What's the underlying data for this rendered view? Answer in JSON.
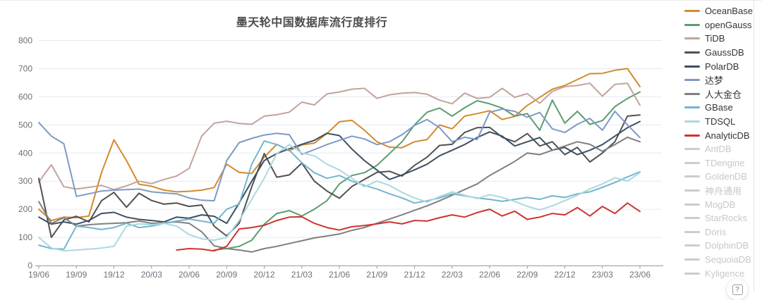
{
  "chart_data": {
    "type": "line",
    "title": "墨天轮中国数据库流行度排行",
    "xlabel": "",
    "ylabel": "",
    "ylim": [
      0,
      800
    ],
    "y_ticks": [
      0,
      100,
      200,
      300,
      400,
      500,
      600,
      700,
      800
    ],
    "x_tick_labels": [
      "19/06",
      "19/09",
      "19/12",
      "20/03",
      "20/06",
      "20/09",
      "20/12",
      "21/03",
      "21/06",
      "21/09",
      "21/12",
      "22/03",
      "22/06",
      "22/09",
      "22/12",
      "23/03",
      "23/06"
    ],
    "x_interval": "monthly, quarterly labels",
    "n_points": 49,
    "grid": "horizontal only",
    "legend_position": "right",
    "style": {
      "grid_color": "#e3e9f3",
      "axis_color": "#999999",
      "tick_color": "#6e7079"
    },
    "series": [
      {
        "name": "OceanBase",
        "color": "#d48a2b",
        "values": [
          200,
          160,
          172,
          170,
          176,
          330,
          447,
          373,
          289,
          282,
          268,
          262,
          264,
          268,
          277,
          360,
          331,
          327,
          385,
          431,
          408,
          429,
          435,
          469,
          511,
          516,
          481,
          440,
          421,
          419,
          440,
          448,
          500,
          486,
          531,
          540,
          550,
          519,
          530,
          569,
          598,
          627,
          640,
          661,
          682,
          683,
          694,
          700,
          636
        ]
      },
      {
        "name": "openGauss",
        "color": "#5d9c70",
        "values": [
          null,
          null,
          null,
          null,
          null,
          null,
          null,
          null,
          null,
          null,
          null,
          null,
          null,
          null,
          55,
          60,
          68,
          90,
          147,
          185,
          195,
          176,
          200,
          230,
          290,
          320,
          330,
          356,
          398,
          440,
          500,
          545,
          560,
          531,
          561,
          586,
          575,
          560,
          531,
          540,
          481,
          588,
          506,
          548,
          502,
          515,
          565,
          594,
          617
        ]
      },
      {
        "name": "TiDB",
        "color": "#c4a39b",
        "values": [
          297,
          358,
          280,
          272,
          278,
          285,
          270,
          283,
          300,
          291,
          306,
          318,
          345,
          460,
          506,
          513,
          505,
          502,
          531,
          536,
          545,
          581,
          571,
          610,
          617,
          627,
          630,
          594,
          607,
          613,
          615,
          609,
          588,
          575,
          613,
          594,
          598,
          630,
          598,
          611,
          577,
          619,
          636,
          640,
          648,
          602,
          644,
          648,
          570
        ]
      },
      {
        "name": "GaussDB",
        "color": "#515151",
        "values": [
          310,
          100,
          162,
          175,
          155,
          230,
          260,
          207,
          257,
          231,
          218,
          222,
          210,
          215,
          140,
          105,
          150,
          280,
          398,
          314,
          322,
          364,
          300,
          265,
          239,
          281,
          306,
          331,
          335,
          318,
          356,
          385,
          427,
          431,
          473,
          490,
          491,
          456,
          440,
          469,
          425,
          440,
          394,
          420,
          368,
          400,
          440,
          531,
          535
        ]
      },
      {
        "name": "PolarDB",
        "color": "#3c4f63",
        "values": [
          172,
          147,
          155,
          147,
          160,
          185,
          189,
          172,
          164,
          160,
          155,
          172,
          168,
          180,
          175,
          150,
          222,
          300,
          373,
          398,
          415,
          431,
          445,
          470,
          462,
          414,
          373,
          339,
          306,
          322,
          340,
          360,
          390,
          410,
          430,
          455,
          475,
          460,
          425,
          440,
          455,
          410,
          420,
          394,
          410,
          430,
          460,
          490,
          512
        ]
      },
      {
        "name": "达梦",
        "color": "#7d9ac6",
        "values": [
          508,
          460,
          433,
          246,
          255,
          265,
          268,
          270,
          272,
          262,
          258,
          255,
          240,
          232,
          230,
          373,
          437,
          452,
          464,
          470,
          465,
          395,
          412,
          430,
          445,
          460,
          450,
          430,
          440,
          465,
          498,
          519,
          490,
          440,
          456,
          448,
          545,
          556,
          548,
          527,
          544,
          486,
          473,
          502,
          523,
          481,
          548,
          500,
          455
        ]
      },
      {
        "name": "人大金仓",
        "color": "#7f7f7f",
        "values": [
          227,
          150,
          170,
          140,
          145,
          148,
          150,
          152,
          158,
          150,
          152,
          155,
          150,
          120,
          70,
          60,
          55,
          48,
          60,
          68,
          78,
          88,
          98,
          105,
          112,
          125,
          135,
          150,
          165,
          180,
          196,
          212,
          230,
          250,
          270,
          290,
          320,
          345,
          370,
          400,
          394,
          410,
          425,
          440,
          431,
          406,
          430,
          456,
          440
        ]
      },
      {
        "name": "GBase",
        "color": "#74b5cd",
        "values": [
          72,
          60,
          58,
          140,
          135,
          128,
          135,
          150,
          135,
          140,
          150,
          158,
          165,
          158,
          150,
          200,
          218,
          360,
          443,
          430,
          410,
          365,
          330,
          310,
          320,
          300,
          285,
          272,
          255,
          240,
          222,
          230,
          240,
          255,
          248,
          240,
          235,
          228,
          235,
          242,
          235,
          248,
          242,
          255,
          262,
          278,
          295,
          315,
          333
        ]
      },
      {
        "name": "TDSQL",
        "color": "#abd8e0",
        "values": [
          100,
          62,
          52,
          55,
          58,
          62,
          68,
          140,
          148,
          145,
          150,
          140,
          110,
          95,
          90,
          100,
          160,
          235,
          310,
          398,
          430,
          400,
          390,
          360,
          340,
          310,
          280,
          300,
          285,
          260,
          240,
          225,
          245,
          262,
          250,
          238,
          252,
          242,
          228,
          210,
          198,
          212,
          230,
          250,
          272,
          290,
          312,
          300,
          330
        ]
      },
      {
        "name": "AnalyticDB",
        "color": "#cf3333",
        "values": [
          null,
          null,
          null,
          null,
          null,
          null,
          null,
          null,
          null,
          null,
          null,
          55,
          60,
          58,
          52,
          68,
          130,
          135,
          143,
          160,
          172,
          173,
          150,
          135,
          126,
          138,
          142,
          148,
          155,
          148,
          160,
          158,
          170,
          180,
          172,
          188,
          200,
          176,
          193,
          164,
          172,
          185,
          180,
          206,
          176,
          210,
          185,
          222,
          192
        ]
      }
    ]
  },
  "legend": {
    "disabled_color": "#c9cdd1",
    "items": [
      {
        "label": "OceanBase",
        "enabled": true
      },
      {
        "label": "openGauss",
        "enabled": true
      },
      {
        "label": "TiDB",
        "enabled": true
      },
      {
        "label": "GaussDB",
        "enabled": true
      },
      {
        "label": "PolarDB",
        "enabled": true
      },
      {
        "label": "达梦",
        "enabled": true
      },
      {
        "label": "人大金仓",
        "enabled": true
      },
      {
        "label": "GBase",
        "enabled": true
      },
      {
        "label": "TDSQL",
        "enabled": true
      },
      {
        "label": "AnalyticDB",
        "enabled": true
      },
      {
        "label": "AntDB",
        "enabled": false
      },
      {
        "label": "TDengine",
        "enabled": false
      },
      {
        "label": "GoldenDB",
        "enabled": false
      },
      {
        "label": "神舟通用",
        "enabled": false
      },
      {
        "label": "MogDB",
        "enabled": false
      },
      {
        "label": "StarRocks",
        "enabled": false
      },
      {
        "label": "Doris",
        "enabled": false
      },
      {
        "label": "DolphinDB",
        "enabled": false
      },
      {
        "label": "SequoiaDB",
        "enabled": false
      },
      {
        "label": "Kyligence",
        "enabled": false
      }
    ]
  },
  "help": {
    "glyph": "?"
  }
}
